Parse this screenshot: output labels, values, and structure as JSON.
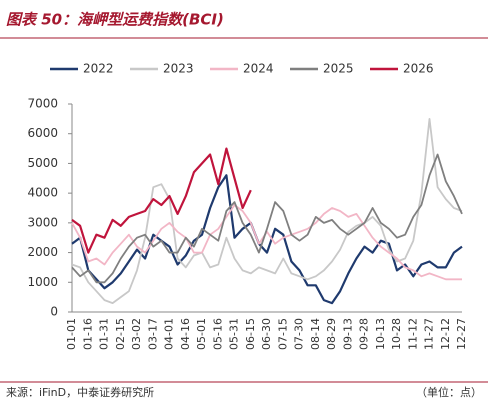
{
  "chart_data": {
    "type": "line",
    "title": "图表 50：海岬型运费指数(BCI)",
    "source": "来源：iFinD，中泰证券研究所",
    "unit": "（单位：点）",
    "categories": [
      "01-01",
      null,
      "01-16",
      null,
      "01-31",
      null,
      "02-15",
      null,
      "03-02",
      null,
      "03-17",
      null,
      "04-01",
      null,
      "04-16",
      null,
      "05-01",
      null,
      "05-16",
      null,
      "05-31",
      null,
      "06-15",
      null,
      "06-30",
      null,
      "07-15",
      null,
      "07-30",
      null,
      "08-14",
      null,
      "08-29",
      null,
      "09-13",
      null,
      "09-28",
      null,
      "10-13",
      null,
      "10-28",
      null,
      "11-12",
      null,
      "11-27",
      null,
      "12-12",
      null,
      "12-27"
    ],
    "ylim": [
      0,
      7000
    ],
    "yticks": [
      0,
      1000,
      2000,
      3000,
      4000,
      5000,
      6000,
      7000
    ],
    "grid": false,
    "legend": "top",
    "series": [
      {
        "name": "2022",
        "color": "#1f3a6e",
        "values": [
          2300,
          2500,
          1400,
          1100,
          800,
          1000,
          1300,
          1700,
          2100,
          1800,
          2600,
          2400,
          2200,
          1600,
          1900,
          2400,
          2600,
          3500,
          4200,
          4600,
          2500,
          2800,
          3000,
          2300,
          2000,
          2800,
          2600,
          1700,
          1400,
          900,
          900,
          400,
          300,
          700,
          1300,
          1800,
          2200,
          2000,
          2400,
          2300,
          1400,
          1600,
          1200,
          1600,
          1700,
          1500,
          1500,
          2000,
          2200
        ]
      },
      {
        "name": "2023",
        "color": "#c8c8c8",
        "values": [
          1600,
          1500,
          1000,
          700,
          400,
          300,
          500,
          700,
          1400,
          2500,
          4200,
          4300,
          3800,
          1800,
          1500,
          1900,
          2000,
          1500,
          1600,
          2500,
          1800,
          1400,
          1300,
          1500,
          1400,
          1300,
          1800,
          1300,
          1200,
          1100,
          1200,
          1400,
          1700,
          2100,
          2700,
          2900,
          3000,
          3200,
          2900,
          2100,
          1700,
          1800,
          2400,
          4000,
          6500,
          4200,
          3800,
          3500,
          3400
        ]
      },
      {
        "name": "2024",
        "color": "#f2b6c6",
        "values": [
          3000,
          2500,
          1700,
          1800,
          1600,
          2000,
          2300,
          2600,
          2200,
          2000,
          2400,
          2800,
          3000,
          2700,
          2500,
          2000,
          2000,
          2600,
          2800,
          3200,
          3600,
          3400,
          3000,
          2300,
          2700,
          2300,
          2500,
          2600,
          2700,
          2800,
          3000,
          3300,
          3500,
          3400,
          3200,
          3300,
          2900,
          2500,
          2200,
          2000,
          1800,
          1500,
          1400,
          1200,
          1300,
          1200,
          1100,
          1100,
          1100
        ]
      },
      {
        "name": "2025",
        "color": "#7f7f7f",
        "values": [
          1500,
          1200,
          1400,
          1000,
          1000,
          1300,
          1800,
          2200,
          2500,
          2600,
          2200,
          2400,
          2000,
          2000,
          2500,
          2200,
          2800,
          2600,
          2400,
          3400,
          3700,
          3000,
          2600,
          2000,
          2800,
          3700,
          3400,
          2600,
          2400,
          2600,
          3200,
          3000,
          3100,
          2800,
          2600,
          2800,
          3000,
          3500,
          3000,
          2800,
          2500,
          2600,
          3200,
          3600,
          4600,
          5300,
          4400,
          3900,
          3300
        ]
      },
      {
        "name": "2026",
        "color": "#c0143c",
        "values": [
          3100,
          2900,
          2000,
          2600,
          2500,
          3100,
          2900,
          3200,
          3300,
          3400,
          3800,
          3600,
          3900,
          3300,
          3900,
          4700,
          5000,
          5300,
          4300,
          5500,
          4500,
          3500,
          4100,
          null,
          null,
          null,
          null,
          null,
          null,
          null,
          null,
          null,
          null,
          null,
          null,
          null,
          null,
          null,
          null,
          null,
          null,
          null,
          null,
          null,
          null,
          null,
          null,
          null,
          null
        ]
      }
    ]
  }
}
